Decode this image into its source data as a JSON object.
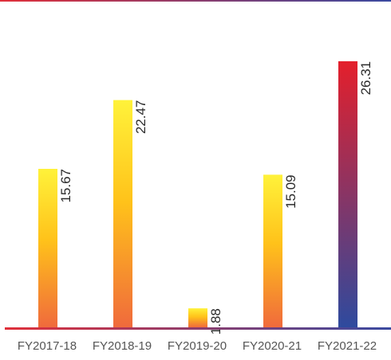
{
  "chart_data": {
    "type": "bar",
    "title": "",
    "xlabel": "",
    "ylabel": "",
    "categories": [
      "FY2017-18",
      "FY2018-19",
      "FY2019-20",
      "FY2020-21",
      "FY2021-22"
    ],
    "values": [
      15.67,
      22.47,
      1.88,
      15.09,
      26.31
    ],
    "value_labels": [
      "15.67",
      "22.47",
      "1.88",
      "15.09",
      "26.31"
    ],
    "ylim": [
      0,
      30
    ],
    "grid": false,
    "legend": "none",
    "colors": {
      "bar_gradient_top": "#fff23a",
      "bar_gradient_mid": "#ffc21a",
      "bar_gradient_bottom": "#f06a3c",
      "last_bar_top": "#e41f2b",
      "last_bar_bottom": "#2e4a9e",
      "axis_line_left": "#e0303a",
      "axis_line_right": "#3a4aa0",
      "top_line_left": "#e0303a",
      "top_line_right": "#3a4aa0",
      "label_text": "#2b2b2b",
      "tick_text": "#555555"
    }
  }
}
